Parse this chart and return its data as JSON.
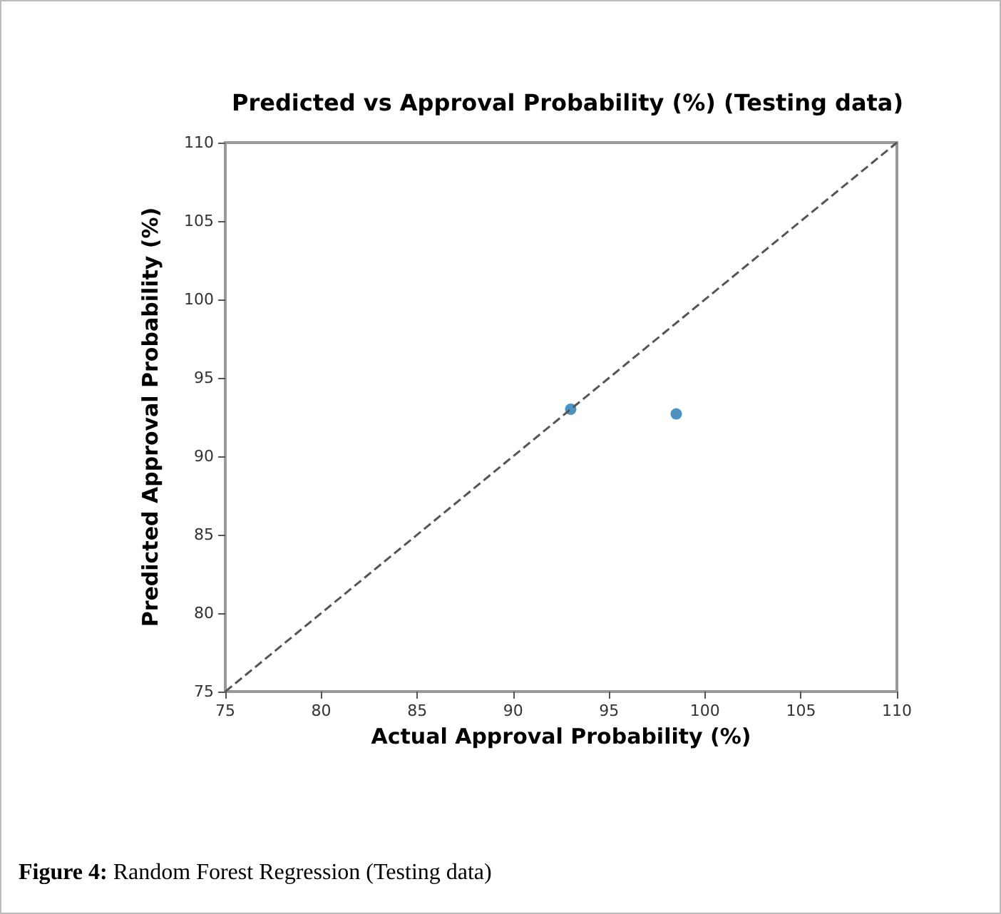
{
  "chart_data": {
    "type": "scatter",
    "title": "Predicted vs Approval Probability (%) (Testing data)",
    "xlabel": "Actual Approval Probability (%)",
    "ylabel": "Predicted Approval Probability (%)",
    "annotations": [
      "Figure 4: Random Forest Regression (Testing data)"
    ],
    "series": [
      {
        "color": "#1f77b4",
        "x": [
          93.0,
          98.5
        ],
        "values": [
          93.0,
          92.7
        ],
        "marker": "circle"
      },
      {
        "type": "line",
        "color": "#555555",
        "x": [
          75,
          110
        ],
        "values": [
          75,
          110
        ],
        "line_style": "dashed",
        "marker": "none"
      }
    ],
    "xlim": [
      75,
      110
    ],
    "ylim": [
      75,
      110
    ],
    "xticks": [
      75,
      80,
      85,
      90,
      95,
      100,
      105,
      110
    ],
    "yticks": [
      75,
      80,
      85,
      90,
      95,
      100,
      105,
      110
    ],
    "grid": false
  }
}
